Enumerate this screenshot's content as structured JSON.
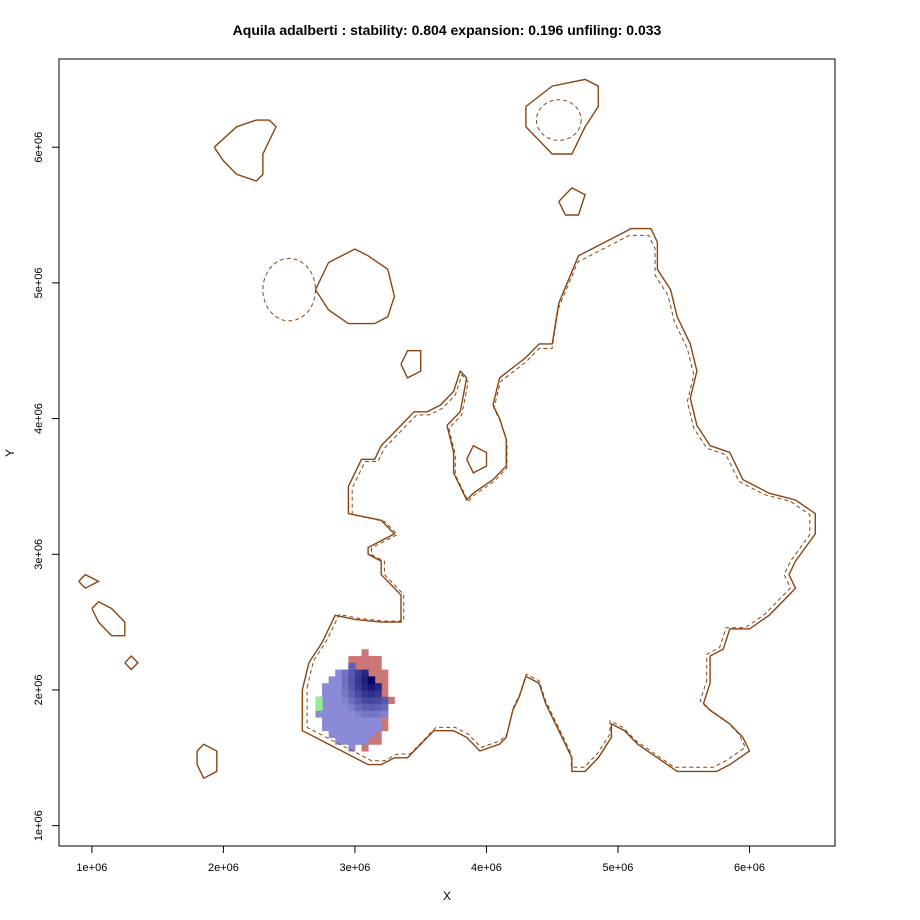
{
  "chart_data": {
    "type": "heatmap",
    "title": "Aquila adalberti : stability: 0.804 expansion: 0.196 unfiling: 0.033",
    "xlabel": "X",
    "ylabel": "Y",
    "xlim": [
      750000,
      6650000
    ],
    "ylim": [
      850000,
      6650000
    ],
    "x_ticks": [
      1000000,
      2000000,
      3000000,
      4000000,
      5000000,
      6000000
    ],
    "x_tick_labels": [
      "1e+06",
      "2e+06",
      "3e+06",
      "4e+06",
      "5e+06",
      "6e+06"
    ],
    "y_ticks": [
      1000000,
      2000000,
      3000000,
      4000000,
      5000000,
      6000000
    ],
    "y_tick_labels": [
      "1e+06",
      "2e+06",
      "3e+06",
      "4e+06",
      "5e+06",
      "6e+06"
    ],
    "colors": {
      "outline": "#8b4513",
      "stability_dark": "#000066",
      "stability_light": "#8a8ad6",
      "expansion": "#c97070",
      "unfilling": "#90ee90"
    },
    "unfilling_cells": [
      {
        "x": 2700000,
        "y": 1900000
      },
      {
        "x": 2700000,
        "y": 1850000
      }
    ],
    "stability_blob": {
      "center_x": 3100000,
      "center_y": 2050000,
      "cells": [
        {
          "x": 3050000,
          "y": 2050000,
          "v": 1.0
        },
        {
          "x": 3100000,
          "y": 2050000,
          "v": 1.0
        }
      ]
    },
    "expansion_blob": {
      "center_x": 3000000,
      "center_y": 1900000
    },
    "outlines": {
      "solid": [
        [
          [
            2600000,
            2000000
          ],
          [
            2650000,
            2200000
          ],
          [
            2750000,
            2350000
          ],
          [
            2850000,
            2550000
          ],
          [
            3000000,
            2520000
          ],
          [
            3200000,
            2500000
          ],
          [
            3250000,
            2500000
          ],
          [
            3350000,
            2500000
          ],
          [
            3350000,
            2700000
          ],
          [
            3200000,
            2850000
          ],
          [
            3200000,
            2950000
          ],
          [
            3100000,
            3000000
          ],
          [
            3100000,
            3050000
          ],
          [
            3300000,
            3150000
          ],
          [
            3200000,
            3250000
          ],
          [
            2950000,
            3300000
          ],
          [
            2950000,
            3500000
          ],
          [
            3050000,
            3700000
          ],
          [
            3150000,
            3700000
          ],
          [
            3200000,
            3800000
          ],
          [
            3350000,
            3950000
          ],
          [
            3450000,
            4050000
          ],
          [
            3550000,
            4050000
          ],
          [
            3650000,
            4100000
          ],
          [
            3750000,
            4200000
          ],
          [
            3800000,
            4350000
          ],
          [
            3850000,
            4300000
          ],
          [
            3800000,
            4050000
          ],
          [
            3700000,
            3950000
          ],
          [
            3750000,
            3750000
          ],
          [
            3750000,
            3600000
          ],
          [
            3800000,
            3500000
          ],
          [
            3850000,
            3400000
          ],
          [
            3900000,
            3450000
          ],
          [
            4050000,
            3550000
          ],
          [
            4150000,
            3650000
          ],
          [
            4150000,
            3850000
          ],
          [
            4100000,
            4000000
          ],
          [
            4050000,
            4100000
          ],
          [
            4100000,
            4300000
          ],
          [
            4300000,
            4450000
          ],
          [
            4400000,
            4550000
          ],
          [
            4500000,
            4550000
          ],
          [
            4550000,
            4850000
          ],
          [
            4700000,
            5200000
          ],
          [
            4900000,
            5300000
          ],
          [
            5100000,
            5400000
          ],
          [
            5250000,
            5400000
          ],
          [
            5300000,
            5300000
          ],
          [
            5300000,
            5100000
          ],
          [
            5400000,
            4950000
          ],
          [
            5450000,
            4750000
          ],
          [
            5550000,
            4550000
          ],
          [
            5600000,
            4350000
          ],
          [
            5550000,
            4150000
          ],
          [
            5600000,
            3950000
          ],
          [
            5700000,
            3800000
          ],
          [
            5850000,
            3750000
          ],
          [
            5950000,
            3550000
          ],
          [
            6050000,
            3500000
          ],
          [
            6150000,
            3450000
          ],
          [
            6350000,
            3400000
          ],
          [
            6500000,
            3300000
          ],
          [
            6500000,
            3150000
          ],
          [
            6350000,
            2950000
          ],
          [
            6300000,
            2850000
          ],
          [
            6350000,
            2750000
          ],
          [
            6300000,
            2700000
          ],
          [
            6150000,
            2550000
          ],
          [
            6000000,
            2450000
          ],
          [
            5850000,
            2450000
          ],
          [
            5800000,
            2300000
          ],
          [
            5700000,
            2250000
          ],
          [
            5700000,
            2050000
          ],
          [
            5650000,
            1900000
          ],
          [
            5700000,
            1850000
          ],
          [
            5850000,
            1750000
          ],
          [
            5950000,
            1650000
          ],
          [
            6000000,
            1550000
          ],
          [
            5850000,
            1450000
          ],
          [
            5750000,
            1400000
          ],
          [
            5600000,
            1400000
          ],
          [
            5450000,
            1400000
          ],
          [
            5300000,
            1500000
          ],
          [
            5150000,
            1600000
          ],
          [
            5050000,
            1700000
          ],
          [
            4950000,
            1750000
          ],
          [
            4950000,
            1650000
          ],
          [
            4850000,
            1500000
          ],
          [
            4750000,
            1400000
          ],
          [
            4650000,
            1400000
          ],
          [
            4650000,
            1500000
          ],
          [
            4550000,
            1700000
          ],
          [
            4500000,
            1800000
          ],
          [
            4450000,
            1900000
          ],
          [
            4400000,
            2050000
          ],
          [
            4300000,
            2100000
          ],
          [
            4250000,
            1950000
          ],
          [
            4200000,
            1850000
          ],
          [
            4150000,
            1650000
          ],
          [
            4100000,
            1600000
          ],
          [
            3950000,
            1550000
          ],
          [
            3850000,
            1650000
          ],
          [
            3750000,
            1700000
          ],
          [
            3600000,
            1700000
          ],
          [
            3500000,
            1600000
          ],
          [
            3400000,
            1500000
          ],
          [
            3300000,
            1500000
          ],
          [
            3200000,
            1450000
          ],
          [
            3100000,
            1450000
          ],
          [
            3000000,
            1500000
          ],
          [
            2900000,
            1550000
          ],
          [
            2800000,
            1600000
          ],
          [
            2700000,
            1650000
          ],
          [
            2600000,
            1700000
          ],
          [
            2600000,
            2000000
          ]
        ]
      ]
    }
  }
}
